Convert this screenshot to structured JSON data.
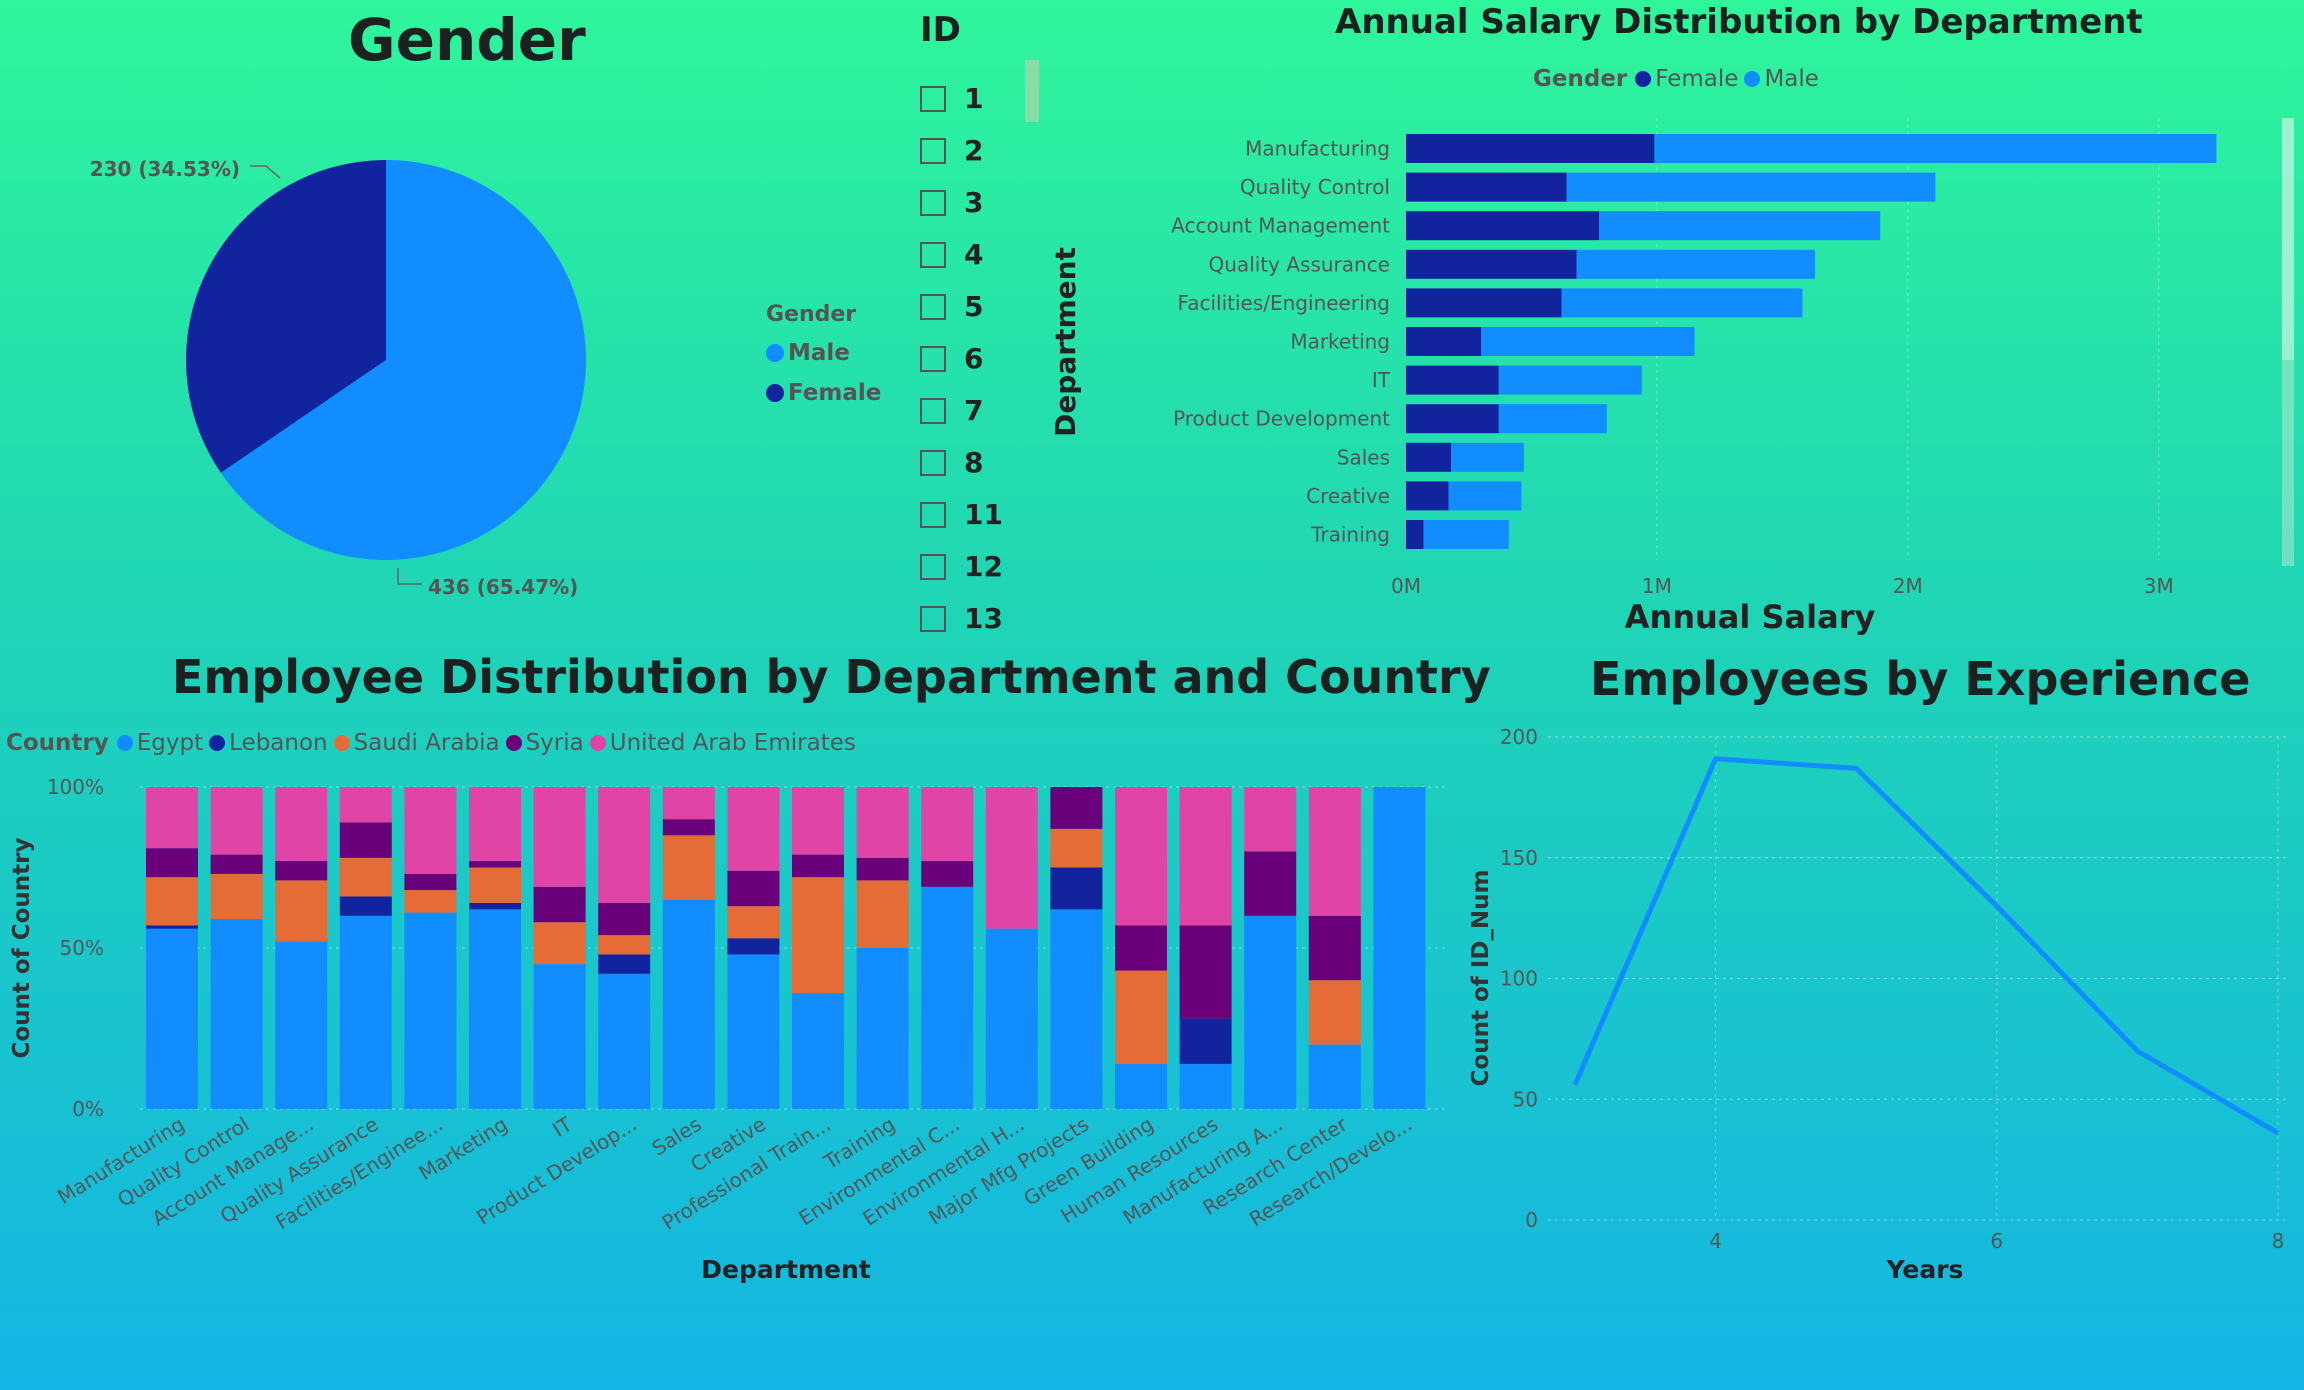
{
  "colors": {
    "male": "#118dff",
    "female": "#12239e",
    "egypt": "#118dff",
    "lebanon": "#12239e",
    "saudi": "#e66c37",
    "syria": "#6b007b",
    "uae": "#e044a7"
  },
  "gender_panel": {
    "title": "Gender",
    "legend_title": "Gender",
    "legend": [
      {
        "name": "Male",
        "color": "#118dff"
      },
      {
        "name": "Female",
        "color": "#12239e"
      }
    ]
  },
  "id_slicer": {
    "title": "ID",
    "items": [
      "1",
      "2",
      "3",
      "4",
      "5",
      "6",
      "7",
      "8",
      "11",
      "12",
      "13"
    ]
  },
  "salary_panel": {
    "title": "Annual Salary Distribution by Department",
    "legend_title": "Gender",
    "legend": [
      {
        "name": "Female",
        "color": "#12239e"
      },
      {
        "name": "Male",
        "color": "#118dff"
      }
    ]
  },
  "country_panel": {
    "title": "Employee Distribution by Department and Country",
    "legend_title": "Country",
    "legend": [
      {
        "name": "Egypt",
        "color": "#118dff"
      },
      {
        "name": "Lebanon",
        "color": "#12239e"
      },
      {
        "name": "Saudi Arabia",
        "color": "#e66c37"
      },
      {
        "name": "Syria",
        "color": "#6b007b"
      },
      {
        "name": "United Arab Emirates",
        "color": "#e044a7"
      }
    ]
  },
  "experience_panel": {
    "title": "Employees by Experience"
  },
  "chart_data": [
    {
      "type": "pie",
      "title": "Gender",
      "slices": [
        {
          "name": "Male",
          "value": 436,
          "label": "436 (65.47%)"
        },
        {
          "name": "Female",
          "value": 230,
          "label": "230 (34.53%)"
        }
      ]
    },
    {
      "type": "bar",
      "orientation": "horizontal",
      "stacked": true,
      "title": "Annual Salary Distribution by Department",
      "xlabel": "Annual Salary",
      "ylabel": "Department",
      "xlim": [
        0,
        3300000
      ],
      "xticks": [
        {
          "v": 0,
          "label": "0M"
        },
        {
          "v": 1000000,
          "label": "1M"
        },
        {
          "v": 2000000,
          "label": "2M"
        },
        {
          "v": 3000000,
          "label": "3M"
        }
      ],
      "categories": [
        "Manufacturing",
        "Quality Control",
        "Account Management",
        "Quality Assurance",
        "Facilities/Engineering",
        "Marketing",
        "IT",
        "Product Development",
        "Sales",
        "Creative",
        "Training"
      ],
      "series": [
        {
          "name": "Female",
          "values": [
            990000,
            640000,
            770000,
            680000,
            620000,
            300000,
            370000,
            370000,
            180000,
            170000,
            70000
          ]
        },
        {
          "name": "Male",
          "values": [
            2240000,
            1470000,
            1120000,
            950000,
            960000,
            850000,
            570000,
            430000,
            290000,
            290000,
            340000
          ]
        }
      ],
      "grid": true
    },
    {
      "type": "bar",
      "stacked": true,
      "percent": true,
      "title": "Employee Distribution by Department and Country",
      "xlabel": "Department",
      "ylabel": "Count of Country",
      "yticks": [
        "0%",
        "50%",
        "100%"
      ],
      "categories": [
        "Manufacturing",
        "Quality Control",
        "Account Manage...",
        "Quality Assurance",
        "Facilities/Enginee...",
        "Marketing",
        "IT",
        "Product Develop...",
        "Sales",
        "Creative",
        "Professional Train...",
        "Training",
        "Environmental C...",
        "Environmental H...",
        "Major Mfg Projects",
        "Green Building",
        "Human Resources",
        "Manufacturing A...",
        "Research Center",
        "Research/Develo..."
      ],
      "series": [
        {
          "name": "Egypt",
          "values": [
            56,
            59,
            52,
            60,
            61,
            62,
            45,
            42,
            65,
            48,
            36,
            50,
            69,
            56,
            62,
            14,
            14,
            60,
            20,
            100
          ]
        },
        {
          "name": "Lebanon",
          "values": [
            1,
            0,
            0,
            6,
            0,
            2,
            0,
            6,
            0,
            5,
            0,
            0,
            0,
            0,
            13,
            0,
            14,
            0,
            0,
            0
          ]
        },
        {
          "name": "Saudi Arabia",
          "values": [
            15,
            14,
            19,
            12,
            7,
            11,
            13,
            6,
            20,
            10,
            36,
            21,
            0,
            0,
            12,
            29,
            0,
            0,
            20,
            0
          ]
        },
        {
          "name": "Syria",
          "values": [
            9,
            6,
            6,
            11,
            5,
            2,
            11,
            10,
            5,
            11,
            7,
            7,
            8,
            0,
            13,
            14,
            29,
            20,
            20,
            0
          ]
        },
        {
          "name": "United Arab Emirates",
          "values": [
            19,
            21,
            23,
            11,
            27,
            23,
            31,
            36,
            10,
            26,
            21,
            22,
            23,
            44,
            0,
            43,
            43,
            20,
            40,
            0
          ]
        }
      ],
      "grid": true
    },
    {
      "type": "line",
      "title": "Employees by Experience",
      "xlabel": "Years",
      "ylabel": "Count of ID_Num",
      "x": [
        3,
        4,
        5,
        6,
        7,
        8
      ],
      "y": [
        56,
        191,
        187,
        130,
        70,
        36
      ],
      "xlim": [
        3,
        8
      ],
      "ylim": [
        0,
        200
      ],
      "xticks": [
        4,
        6,
        8
      ],
      "yticks": [
        0,
        50,
        100,
        150,
        200
      ],
      "grid": true
    }
  ]
}
